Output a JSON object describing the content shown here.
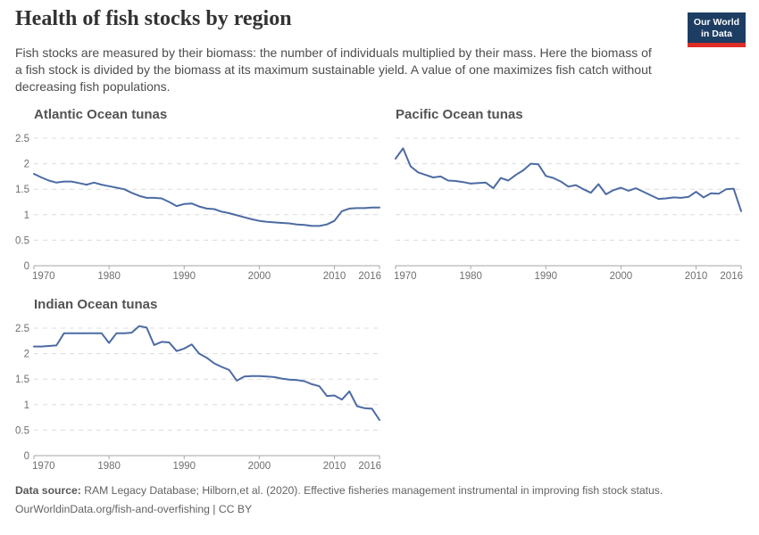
{
  "header": {
    "title": "Health of fish stocks by region",
    "subtitle": "Fish stocks are measured by their biomass: the number of individuals multiplied by their mass. Here the biomass of a fish stock is divided by the biomass at its maximum sustainable yield. A value of one maximizes fish catch without decreasing fish populations.",
    "logo": {
      "line1": "Our World",
      "line2": "in Data",
      "bg_color": "#1d3d63",
      "bar_color": "#dc2e27"
    }
  },
  "chart_data": [
    {
      "type": "line",
      "title": "Atlantic Ocean tunas",
      "years_range": [
        1970,
        2016
      ],
      "x_step": 1,
      "values": [
        1.8,
        1.73,
        1.67,
        1.63,
        1.65,
        1.65,
        1.62,
        1.59,
        1.63,
        1.59,
        1.56,
        1.53,
        1.5,
        1.43,
        1.37,
        1.33,
        1.33,
        1.32,
        1.25,
        1.17,
        1.21,
        1.22,
        1.16,
        1.12,
        1.11,
        1.06,
        1.03,
        0.99,
        0.95,
        0.91,
        0.88,
        0.86,
        0.85,
        0.84,
        0.83,
        0.81,
        0.8,
        0.78,
        0.78,
        0.81,
        0.88,
        1.07,
        1.12,
        1.13,
        1.13,
        1.14,
        1.14
      ],
      "xticks": [
        "1970",
        "1980",
        "1990",
        "2000",
        "2010",
        "2016"
      ],
      "yticks": [
        "0",
        "0.5",
        "1",
        "1.5",
        "2",
        "2.5"
      ],
      "ylim": [
        0,
        2.5
      ],
      "show_y_labels": true,
      "gridlines": "horizontal-dashed",
      "line_color": "#4c6ba3"
    },
    {
      "type": "line",
      "title": "Pacific Ocean tunas",
      "years_range": [
        1970,
        2016
      ],
      "x_step": 1,
      "values": [
        2.1,
        2.3,
        1.95,
        1.83,
        1.78,
        1.73,
        1.75,
        1.67,
        1.66,
        1.64,
        1.61,
        1.62,
        1.63,
        1.52,
        1.72,
        1.67,
        1.78,
        1.87,
        2.0,
        1.99,
        1.76,
        1.72,
        1.65,
        1.55,
        1.58,
        1.5,
        1.43,
        1.6,
        1.4,
        1.48,
        1.53,
        1.47,
        1.52,
        1.45,
        1.38,
        1.31,
        1.32,
        1.34,
        1.33,
        1.35,
        1.45,
        1.34,
        1.42,
        1.41,
        1.5,
        1.51,
        1.07
      ],
      "xticks": [
        "1970",
        "1980",
        "1990",
        "2000",
        "2010",
        "2016"
      ],
      "yticks": [
        "0",
        "0.5",
        "1",
        "1.5",
        "2",
        "2.5"
      ],
      "ylim": [
        0,
        2.5
      ],
      "show_y_labels": false,
      "gridlines": "horizontal-dashed",
      "line_color": "#4c6ba3"
    },
    {
      "type": "line",
      "title": "Indian Ocean tunas",
      "years_range": [
        1970,
        2016
      ],
      "x_step": 1,
      "values": [
        2.14,
        2.14,
        2.15,
        2.16,
        2.4,
        2.4,
        2.4,
        2.4,
        2.4,
        2.4,
        2.21,
        2.4,
        2.4,
        2.41,
        2.54,
        2.51,
        2.17,
        2.23,
        2.22,
        2.05,
        2.1,
        2.18,
        2.0,
        1.92,
        1.81,
        1.74,
        1.68,
        1.47,
        1.55,
        1.56,
        1.56,
        1.55,
        1.54,
        1.51,
        1.49,
        1.48,
        1.46,
        1.4,
        1.36,
        1.17,
        1.18,
        1.1,
        1.26,
        0.97,
        0.93,
        0.92,
        0.7
      ],
      "xticks": [
        "1970",
        "1980",
        "1990",
        "2000",
        "2010",
        "2016"
      ],
      "yticks": [
        "0",
        "0.5",
        "1",
        "1.5",
        "2",
        "2.5"
      ],
      "ylim": [
        0,
        2.5
      ],
      "show_y_labels": true,
      "gridlines": "horizontal-dashed",
      "line_color": "#4c6ba3"
    }
  ],
  "footer": {
    "source_label": "Data source:",
    "source_text": " RAM Legacy Database; Hilborn,et al. (2020). Effective fisheries management instrumental in improving fish stock status.",
    "license_line": "OurWorldinData.org/fish-and-overfishing | CC BY"
  }
}
